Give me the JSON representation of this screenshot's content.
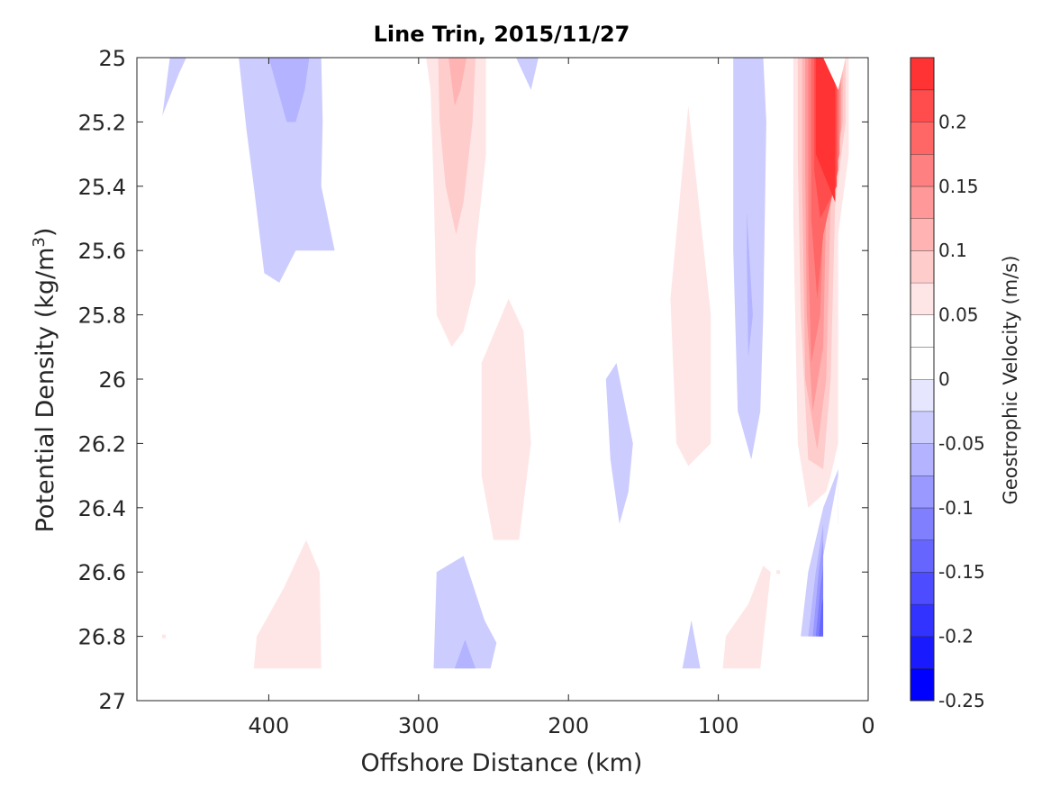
{
  "chart_data": {
    "type": "heatmap",
    "subtype": "filled-contour",
    "title": "Line Trin, 2015/11/27",
    "xlabel": "Offshore Distance (km)",
    "ylabel_prefix": "Potential Density (kg/m",
    "ylabel_sup": "3",
    "ylabel_suffix": ")",
    "xlim": [
      488,
      0
    ],
    "ylim": [
      27,
      25
    ],
    "x_ticks": [
      400,
      300,
      200,
      100,
      0
    ],
    "x_tick_labels": [
      "400",
      "300",
      "200",
      "100",
      "0"
    ],
    "y_ticks": [
      25,
      25.2,
      25.4,
      25.6,
      25.8,
      26,
      26.2,
      26.4,
      26.6,
      26.8,
      27
    ],
    "y_tick_labels": [
      "25",
      "25.2",
      "25.4",
      "25.6",
      "25.8",
      "26",
      "26.2",
      "26.4",
      "26.6",
      "26.8",
      "27"
    ],
    "colorbar": {
      "label": "Geostrophic Velocity (m/s)",
      "range": [
        -0.25,
        0.25
      ],
      "levels": [
        -0.25,
        -0.225,
        -0.2,
        -0.175,
        -0.15,
        -0.125,
        -0.1,
        -0.075,
        -0.05,
        -0.025,
        0,
        0.025,
        0.05,
        0.075,
        0.1,
        0.125,
        0.15,
        0.175,
        0.2,
        0.225,
        0.25
      ],
      "ticks": [
        -0.25,
        -0.2,
        -0.15,
        -0.1,
        -0.05,
        0,
        0.05,
        0.1,
        0.15,
        0.2
      ],
      "tick_labels": [
        "-0.25",
        "-0.2",
        "-0.15",
        "-0.1",
        "-0.05",
        "0",
        "0.05",
        "0.1",
        "0.15",
        "0.2"
      ],
      "colors": [
        "#0000ff",
        "#1a1aff",
        "#3333ff",
        "#4d4dff",
        "#6666ff",
        "#8080ff",
        "#9999ff",
        "#b3b3ff",
        "#ccccff",
        "#e6e6ff",
        "#ffffff",
        "#ffffff",
        "#ffe6e6",
        "#ffcccc",
        "#ffb3b3",
        "#ff9999",
        "#ff8080",
        "#ff6666",
        "#ff4d4d",
        "#ff3333",
        "#ff0000"
      ]
    },
    "regions": [
      {
        "name": "neg-a",
        "value": -0.05,
        "points": [
          [
            466,
            25
          ],
          [
            455,
            25
          ],
          [
            460,
            25.05
          ],
          [
            471,
            25.18
          ]
        ]
      },
      {
        "name": "neg-b",
        "value": -0.05,
        "points": [
          [
            420,
            25
          ],
          [
            365,
            25
          ],
          [
            364,
            25.2
          ],
          [
            365,
            25.4
          ],
          [
            356,
            25.6
          ],
          [
            382,
            25.6
          ],
          [
            393,
            25.7
          ],
          [
            403,
            25.67
          ],
          [
            410,
            25.4
          ],
          [
            415,
            25.22
          ]
        ]
      },
      {
        "name": "neg-b-core",
        "value": -0.075,
        "points": [
          [
            400,
            25
          ],
          [
            373,
            25
          ],
          [
            376,
            25.1
          ],
          [
            382,
            25.2
          ],
          [
            388,
            25.2
          ]
        ]
      },
      {
        "name": "neg-c",
        "value": -0.05,
        "points": [
          [
            235,
            25
          ],
          [
            220,
            25
          ],
          [
            225,
            25.1
          ],
          [
            228,
            25.07
          ]
        ]
      },
      {
        "name": "neg-d",
        "value": -0.05,
        "points": [
          [
            175,
            26
          ],
          [
            168,
            25.95
          ],
          [
            157,
            26.2
          ],
          [
            160,
            26.35
          ],
          [
            166,
            26.45
          ],
          [
            172,
            26.25
          ]
        ]
      },
      {
        "name": "neg-e",
        "value": -0.05,
        "points": [
          [
            90,
            25
          ],
          [
            70,
            25
          ],
          [
            68,
            25.2
          ],
          [
            70,
            25.8
          ],
          [
            72,
            26.1
          ],
          [
            78,
            26.25
          ],
          [
            87,
            26.1
          ],
          [
            90,
            25.6
          ]
        ]
      },
      {
        "name": "neg-e-core",
        "value": -0.075,
        "points": [
          [
            81,
            25.48
          ],
          [
            77,
            25.8
          ],
          [
            80,
            25.93
          ],
          [
            81,
            25.6
          ]
        ]
      },
      {
        "name": "neg-f",
        "value": -0.05,
        "points": [
          [
            290,
            26.9
          ],
          [
            288,
            26.6
          ],
          [
            270,
            26.55
          ],
          [
            256,
            26.75
          ],
          [
            248,
            26.82
          ],
          [
            252,
            26.9
          ]
        ]
      },
      {
        "name": "neg-f-core",
        "value": -0.075,
        "points": [
          [
            276,
            26.9
          ],
          [
            269,
            26.81
          ],
          [
            262,
            26.9
          ]
        ]
      },
      {
        "name": "neg-g",
        "value": -0.05,
        "points": [
          [
            124,
            26.9
          ],
          [
            118,
            26.75
          ],
          [
            112,
            26.9
          ]
        ]
      },
      {
        "name": "neg-h",
        "value": -0.05,
        "points": [
          [
            45,
            26.8
          ],
          [
            40,
            26.6
          ],
          [
            30,
            26.4
          ],
          [
            20,
            26.28
          ],
          [
            20,
            26.45
          ],
          [
            25,
            26.55
          ],
          [
            30,
            26.8
          ]
        ]
      },
      {
        "name": "neg-h1",
        "value": -0.075,
        "points": [
          [
            40,
            26.8
          ],
          [
            35,
            26.6
          ],
          [
            30,
            26.45
          ],
          [
            30,
            26.8
          ]
        ]
      },
      {
        "name": "neg-h2",
        "value": -0.1,
        "points": [
          [
            37,
            26.8
          ],
          [
            33,
            26.6
          ],
          [
            30,
            26.5
          ],
          [
            30,
            26.8
          ]
        ]
      },
      {
        "name": "neg-h3",
        "value": -0.125,
        "points": [
          [
            35,
            26.8
          ],
          [
            32,
            26.65
          ],
          [
            30,
            26.58
          ],
          [
            30,
            26.8
          ]
        ]
      },
      {
        "name": "neg-h4",
        "value": -0.15,
        "points": [
          [
            33,
            26.8
          ],
          [
            31,
            26.7
          ],
          [
            30,
            26.68
          ],
          [
            30,
            26.8
          ]
        ]
      },
      {
        "name": "pos-a",
        "value": 0.05,
        "points": [
          [
            295,
            25
          ],
          [
            255,
            25
          ],
          [
            255,
            25.3
          ],
          [
            262,
            25.6
          ],
          [
            262,
            25.7
          ],
          [
            270,
            25.85
          ],
          [
            278,
            25.9
          ],
          [
            288,
            25.8
          ],
          [
            290,
            25.4
          ],
          [
            292,
            25.1
          ]
        ]
      },
      {
        "name": "pos-a1",
        "value": 0.075,
        "points": [
          [
            287,
            25
          ],
          [
            262,
            25
          ],
          [
            264,
            25.2
          ],
          [
            270,
            25.45
          ],
          [
            275,
            25.55
          ],
          [
            282,
            25.4
          ],
          [
            286,
            25.2
          ]
        ]
      },
      {
        "name": "pos-a2",
        "value": 0.1,
        "points": [
          [
            280,
            25
          ],
          [
            268,
            25
          ],
          [
            272,
            25.1
          ],
          [
            276,
            25.15
          ]
        ]
      },
      {
        "name": "pos-b",
        "value": 0.05,
        "points": [
          [
            240,
            25.75
          ],
          [
            230,
            25.85
          ],
          [
            225,
            26.2
          ],
          [
            233,
            26.5
          ],
          [
            250,
            26.5
          ],
          [
            258,
            26.3
          ],
          [
            258,
            25.95
          ]
        ]
      },
      {
        "name": "pos-c",
        "value": 0.05,
        "points": [
          [
            120,
            25.15
          ],
          [
            105,
            25.8
          ],
          [
            105,
            26.2
          ],
          [
            120,
            26.27
          ],
          [
            128,
            26.2
          ],
          [
            132,
            25.75
          ]
        ]
      },
      {
        "name": "pos-d",
        "value": 0.05,
        "points": [
          [
            410,
            26.9
          ],
          [
            365,
            26.9
          ],
          [
            366,
            26.6
          ],
          [
            375,
            26.5
          ],
          [
            390,
            26.65
          ],
          [
            408,
            26.8
          ]
        ]
      },
      {
        "name": "pos-e",
        "value": 0.05,
        "points": [
          [
            97,
            26.9
          ],
          [
            72,
            26.9
          ],
          [
            65,
            26.6
          ],
          [
            70,
            26.58
          ],
          [
            80,
            26.7
          ],
          [
            95,
            26.8
          ]
        ]
      },
      {
        "name": "pos-f",
        "value": 0.05,
        "points": [
          [
            50,
            25
          ],
          [
            13,
            25
          ],
          [
            13,
            25.3
          ],
          [
            20,
            25.55
          ],
          [
            20,
            26.2
          ],
          [
            25,
            26.3
          ],
          [
            28,
            26.35
          ],
          [
            40,
            26.4
          ],
          [
            47,
            26.2
          ],
          [
            50,
            25.5
          ]
        ]
      },
      {
        "name": "pos-f1",
        "value": 0.075,
        "points": [
          [
            47,
            25
          ],
          [
            15,
            25
          ],
          [
            15,
            25.2
          ],
          [
            22,
            25.45
          ],
          [
            25,
            26
          ],
          [
            30,
            26.28
          ],
          [
            40,
            26.25
          ],
          [
            45,
            25.8
          ],
          [
            47,
            25.3
          ]
        ]
      },
      {
        "name": "pos-f2",
        "value": 0.1,
        "points": [
          [
            44,
            25
          ],
          [
            17,
            25
          ],
          [
            17,
            25.2
          ],
          [
            25,
            25.45
          ],
          [
            28,
            26
          ],
          [
            34,
            26.22
          ],
          [
            42,
            26
          ],
          [
            44,
            25.4
          ]
        ]
      },
      {
        "name": "pos-f3",
        "value": 0.125,
        "points": [
          [
            42,
            25
          ],
          [
            18,
            25
          ],
          [
            18,
            25.22
          ],
          [
            28,
            25.45
          ],
          [
            30,
            25.9
          ],
          [
            37,
            26.1
          ],
          [
            41,
            25.8
          ],
          [
            42,
            25.35
          ]
        ]
      },
      {
        "name": "pos-f4",
        "value": 0.15,
        "points": [
          [
            40,
            25
          ],
          [
            19,
            25
          ],
          [
            19,
            25.3
          ],
          [
            30,
            25.5
          ],
          [
            32,
            25.8
          ],
          [
            38,
            25.95
          ],
          [
            40,
            25.6
          ]
        ]
      },
      {
        "name": "pos-f5",
        "value": 0.175,
        "points": [
          [
            38,
            25
          ],
          [
            20,
            25
          ],
          [
            20,
            25.35
          ],
          [
            30,
            25.55
          ],
          [
            34,
            25.75
          ],
          [
            38,
            25.5
          ]
        ]
      },
      {
        "name": "pos-f6",
        "value": 0.2,
        "points": [
          [
            36,
            25
          ],
          [
            21,
            25
          ],
          [
            21,
            25.4
          ],
          [
            32,
            25.5
          ],
          [
            36,
            25.35
          ]
        ]
      },
      {
        "name": "pos-f7",
        "value": 0.225,
        "points": [
          [
            35,
            25
          ],
          [
            22,
            25
          ],
          [
            22,
            25.45
          ],
          [
            35,
            25.3
          ]
        ]
      }
    ],
    "white_patches": [
      {
        "name": "white-top-right",
        "points": [
          [
            30,
            25
          ],
          [
            15,
            25
          ],
          [
            20,
            25.1
          ]
        ]
      },
      {
        "name": "white-right-gap",
        "points": [
          [
            13,
            25.4
          ],
          [
            8,
            25.4
          ],
          [
            8,
            26
          ],
          [
            18,
            26
          ],
          [
            18,
            25.5
          ]
        ]
      },
      {
        "name": "white-below-neg-h",
        "points": [
          [
            30,
            26.8
          ],
          [
            20,
            26.8
          ],
          [
            20,
            26.3
          ],
          [
            30,
            26.55
          ]
        ]
      }
    ],
    "points": [
      {
        "name": "dot-pos-left",
        "value": 0.05,
        "x": 470,
        "y": 26.8
      },
      {
        "name": "dot-pos-mid",
        "value": 0.05,
        "x": 60,
        "y": 26.6
      }
    ]
  }
}
